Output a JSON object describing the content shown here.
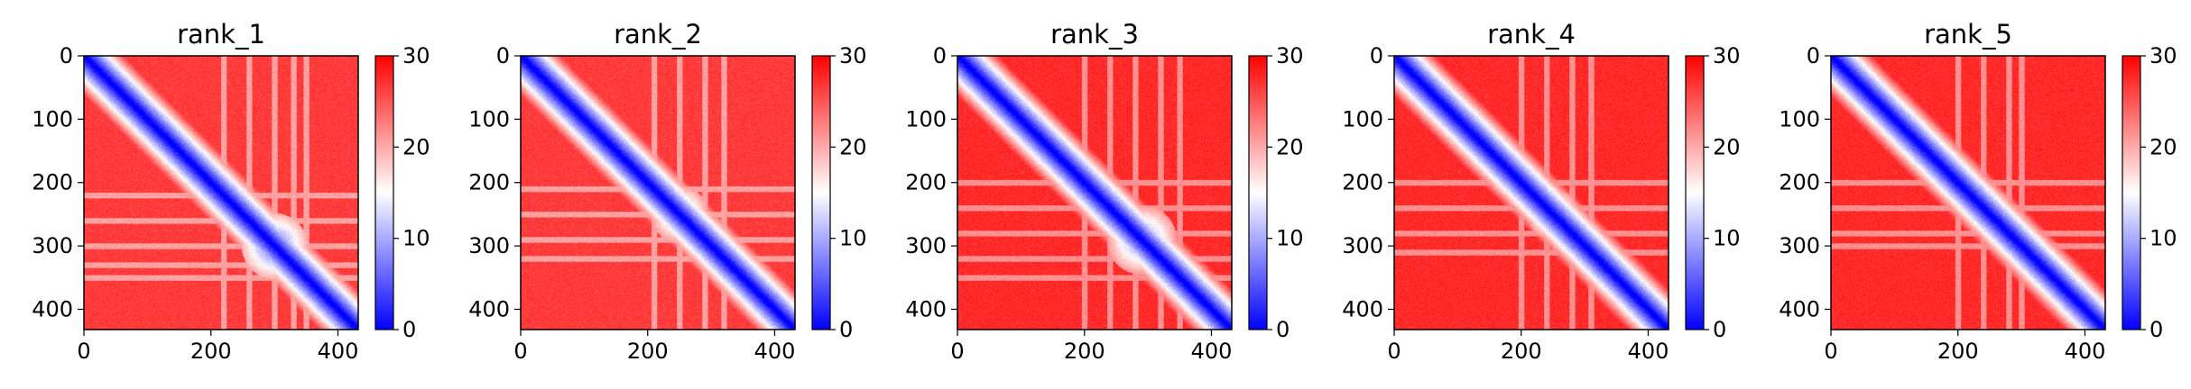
{
  "figure": {
    "colormap": "bwr",
    "colors": {
      "low": "#0000ff",
      "mid": "#ffffff",
      "high": "#ff0000"
    }
  },
  "chart_data": [
    {
      "type": "heatmap",
      "title": "rank_1",
      "xlabel": "",
      "ylabel": "",
      "xlim": [
        0,
        432
      ],
      "ylim": [
        432,
        0
      ],
      "xticks": [
        0,
        200,
        400
      ],
      "yticks": [
        0,
        100,
        200,
        300,
        400
      ],
      "colorbar": {
        "range": [
          0,
          30
        ],
        "ticks": [
          0,
          10,
          20,
          30
        ]
      },
      "size": 432,
      "diagonal_value": 0,
      "background_value": 28,
      "blobs": [
        {
          "center": [
            300,
            300
          ],
          "radius": 52,
          "value": 6
        },
        {
          "center": [
            280,
            280
          ],
          "radius": 25,
          "value": 3
        },
        {
          "center": [
            210,
            210
          ],
          "radius": 15,
          "value": 5
        }
      ],
      "light_band_centers": [
        220,
        260,
        300,
        330,
        350
      ]
    },
    {
      "type": "heatmap",
      "title": "rank_2",
      "xlabel": "",
      "ylabel": "",
      "xlim": [
        0,
        432
      ],
      "ylim": [
        432,
        0
      ],
      "xticks": [
        0,
        200,
        400
      ],
      "yticks": [
        0,
        100,
        200,
        300,
        400
      ],
      "colorbar": {
        "range": [
          0,
          30
        ],
        "ticks": [
          0,
          10,
          20,
          30
        ]
      },
      "size": 432,
      "diagonal_value": 0,
      "background_value": 28,
      "blobs": [
        {
          "center": [
            250,
            250
          ],
          "radius": 45,
          "value": 9
        },
        {
          "center": [
            235,
            235
          ],
          "radius": 14,
          "value": 3
        },
        {
          "center": [
            280,
            280
          ],
          "radius": 14,
          "value": 4
        }
      ],
      "light_band_centers": [
        210,
        250,
        290,
        320
      ]
    },
    {
      "type": "heatmap",
      "title": "rank_3",
      "xlabel": "",
      "ylabel": "",
      "xlim": [
        0,
        432
      ],
      "ylim": [
        432,
        0
      ],
      "xticks": [
        0,
        200,
        400
      ],
      "yticks": [
        0,
        100,
        200,
        300,
        400
      ],
      "colorbar": {
        "range": [
          0,
          30
        ],
        "ticks": [
          0,
          10,
          20,
          30
        ]
      },
      "size": 432,
      "diagonal_value": 0,
      "background_value": 29,
      "blobs": [
        {
          "center": [
            290,
            290
          ],
          "radius": 55,
          "value": 8
        },
        {
          "center": [
            275,
            275
          ],
          "radius": 20,
          "value": 3
        },
        {
          "center": [
            45,
            45
          ],
          "radius": 10,
          "value": 4
        }
      ],
      "light_band_centers": [
        200,
        240,
        280,
        320,
        350
      ]
    },
    {
      "type": "heatmap",
      "title": "rank_4",
      "xlabel": "",
      "ylabel": "",
      "xlim": [
        0,
        432
      ],
      "ylim": [
        432,
        0
      ],
      "xticks": [
        0,
        200,
        400
      ],
      "yticks": [
        0,
        100,
        200,
        300,
        400
      ],
      "colorbar": {
        "range": [
          0,
          30
        ],
        "ticks": [
          0,
          10,
          20,
          30
        ]
      },
      "size": 432,
      "diagonal_value": 0,
      "background_value": 29,
      "blobs": [
        {
          "center": [
            250,
            250
          ],
          "radius": 40,
          "value": 8
        },
        {
          "center": [
            230,
            230
          ],
          "radius": 12,
          "value": 3
        },
        {
          "center": [
            265,
            265
          ],
          "radius": 12,
          "value": 3
        },
        {
          "center": [
            40,
            40
          ],
          "radius": 10,
          "value": 5
        }
      ],
      "light_band_centers": [
        200,
        240,
        280,
        310
      ]
    },
    {
      "type": "heatmap",
      "title": "rank_5",
      "xlabel": "",
      "ylabel": "",
      "xlim": [
        0,
        432
      ],
      "ylim": [
        432,
        0
      ],
      "xticks": [
        0,
        200,
        400
      ],
      "yticks": [
        0,
        100,
        200,
        300,
        400
      ],
      "colorbar": {
        "range": [
          0,
          30
        ],
        "ticks": [
          0,
          10,
          20,
          30
        ]
      },
      "size": 432,
      "diagonal_value": 0,
      "background_value": 29,
      "blobs": [
        {
          "center": [
            250,
            250
          ],
          "radius": 38,
          "value": 9
        },
        {
          "center": [
            230,
            230
          ],
          "radius": 12,
          "value": 3
        },
        {
          "center": [
            50,
            50
          ],
          "radius": 10,
          "value": 5
        }
      ],
      "light_band_centers": [
        200,
        240,
        280,
        300
      ]
    }
  ]
}
